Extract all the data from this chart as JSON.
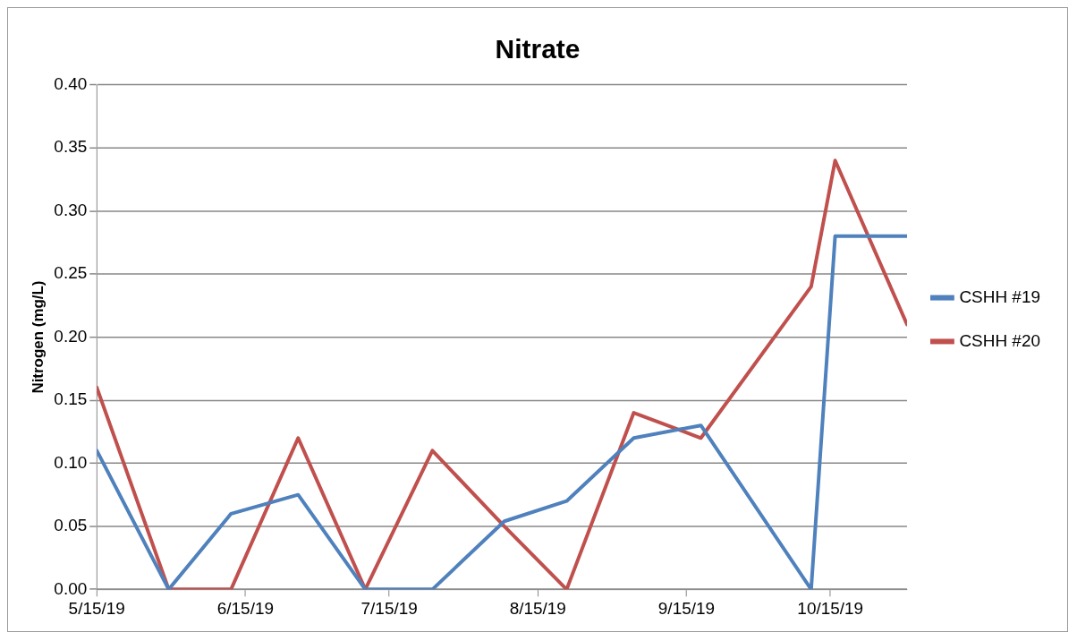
{
  "chart_data": {
    "type": "line",
    "title": "Nitrate",
    "ylabel": "Nitrogen (mg/L)",
    "x": [
      "2019-05-15",
      "2019-05-30",
      "2019-06-12",
      "2019-06-26",
      "2019-07-10",
      "2019-07-24",
      "2019-08-08",
      "2019-08-21",
      "2019-09-04",
      "2019-09-18",
      "2019-10-11",
      "2019-10-16",
      "2019-10-31"
    ],
    "series": [
      {
        "name": "CSHH #19",
        "color": "#4f81bd",
        "values": [
          0.11,
          0,
          0.06,
          0.075,
          0,
          0,
          0.054,
          0.07,
          0.12,
          0.13,
          0,
          0.28,
          0.28
        ]
      },
      {
        "name": "CSHH #20",
        "color": "#c0504d",
        "values": [
          0.16,
          0,
          0,
          0.12,
          0,
          0.11,
          0.05,
          0,
          0.14,
          0.12,
          0.24,
          0.34,
          0.21
        ]
      }
    ],
    "xlim": [
      "2019-05-15",
      "2019-10-31"
    ],
    "xticks": [
      {
        "value": "2019-05-15",
        "label": "5/15/19"
      },
      {
        "value": "2019-06-15",
        "label": "6/15/19"
      },
      {
        "value": "2019-07-15",
        "label": "7/15/19"
      },
      {
        "value": "2019-08-15",
        "label": "8/15/19"
      },
      {
        "value": "2019-09-15",
        "label": "9/15/19"
      },
      {
        "value": "2019-10-15",
        "label": "10/15/19"
      }
    ],
    "ylim": [
      0,
      0.4
    ],
    "yticks": [
      {
        "value": 0,
        "label": "0.00"
      },
      {
        "value": 0.05,
        "label": "0.05"
      },
      {
        "value": 0.1,
        "label": "0.10"
      },
      {
        "value": 0.15,
        "label": "0.15"
      },
      {
        "value": 0.2,
        "label": "0.20"
      },
      {
        "value": 0.25,
        "label": "0.25"
      },
      {
        "value": 0.3,
        "label": "0.30"
      },
      {
        "value": 0.35,
        "label": "0.35"
      },
      {
        "value": 0.4,
        "label": "0.40"
      }
    ],
    "grid": "y",
    "legend": "right",
    "marker": "none",
    "line_style": "solid"
  }
}
